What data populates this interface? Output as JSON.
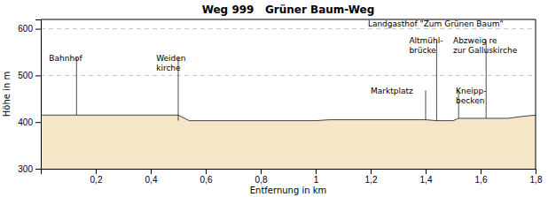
{
  "chart_data": {
    "type": "area",
    "title": "Weg 999   Grüner Baum-Weg",
    "x_label": "Entfernung in km",
    "y_label": "Höhe in m",
    "x": [
      0.0,
      0.13,
      0.5,
      0.54,
      1.0,
      1.05,
      1.4,
      1.44,
      1.5,
      1.52,
      1.6,
      1.62,
      1.7,
      1.75,
      1.8
    ],
    "values": [
      415,
      415,
      415,
      403,
      403,
      405,
      405,
      403,
      403,
      408,
      408,
      408,
      408,
      412,
      415
    ],
    "color": "#f5e6c8",
    "xlim": [
      0.0,
      1.8
    ],
    "ylim": [
      300,
      620
    ],
    "xticks": [
      {
        "value": 0.2,
        "label": "0,2"
      },
      {
        "value": 0.4,
        "label": "0,4"
      },
      {
        "value": 0.6,
        "label": "0,6"
      },
      {
        "value": 0.8,
        "label": "0,8"
      },
      1,
      {
        "value": 1.2,
        "label": "1,2"
      },
      {
        "value": 1.4,
        "label": "1,4"
      },
      {
        "value": 1.6,
        "label": "1,6"
      },
      {
        "value": 1.8,
        "label": "1,8"
      }
    ],
    "yticks": [
      300,
      400,
      500,
      600
    ],
    "grid": true,
    "annotations": [
      {
        "text": "Bahnhof",
        "x": 0.03,
        "y": 545
      },
      {
        "text": "Weiden\nkirche",
        "x": 0.42,
        "y": 545
      },
      {
        "text": "Marktplatz",
        "x": 1.2,
        "y": 475
      },
      {
        "text": "Kneipp-\nbecken",
        "x": 1.51,
        "y": 475
      },
      {
        "text": "Altmühl-\nbrücke",
        "x": 1.34,
        "y": 582
      },
      {
        "text": "Abzweig re\nzur Galluskirche",
        "x": 1.5,
        "y": 582
      },
      {
        "text": "Landgasthof \"Zum Grünen Baum\"",
        "x": 1.19,
        "y": 618
      }
    ],
    "pointers": [
      {
        "x": 0.13,
        "y_start": 415,
        "y_end": 538
      },
      {
        "x": 0.5,
        "y_start": 403,
        "y_end": 538
      },
      {
        "x": 1.4,
        "y_start": 405,
        "y_end": 468
      },
      {
        "x": 1.52,
        "y_start": 408,
        "y_end": 468
      },
      {
        "x": 1.44,
        "y_start": 403,
        "y_end": 576
      },
      {
        "x": 1.62,
        "y_start": 408,
        "y_end": 576
      }
    ]
  }
}
